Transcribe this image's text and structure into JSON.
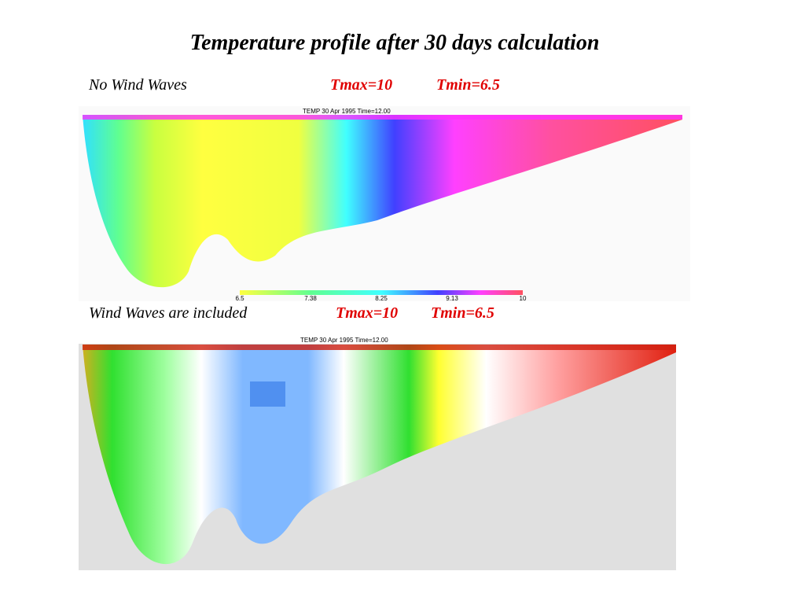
{
  "title": "Temperature profile after 30 days calculation",
  "panels": [
    {
      "label": "No Wind Waves",
      "tmax": "Tmax=10",
      "tmin": "Tmin=6.5",
      "header": "TEMP       30 Apr 1995    Time=12.00",
      "colorbar": [
        "6.5",
        "7.38",
        "8.25",
        "9.13",
        "10"
      ]
    },
    {
      "label": "Wind Waves are included",
      "tmax": "Tmax=10",
      "tmin": "Tmin=6.5",
      "header": "TEMP       30 Apr 1995    Time=12.00"
    }
  ]
}
